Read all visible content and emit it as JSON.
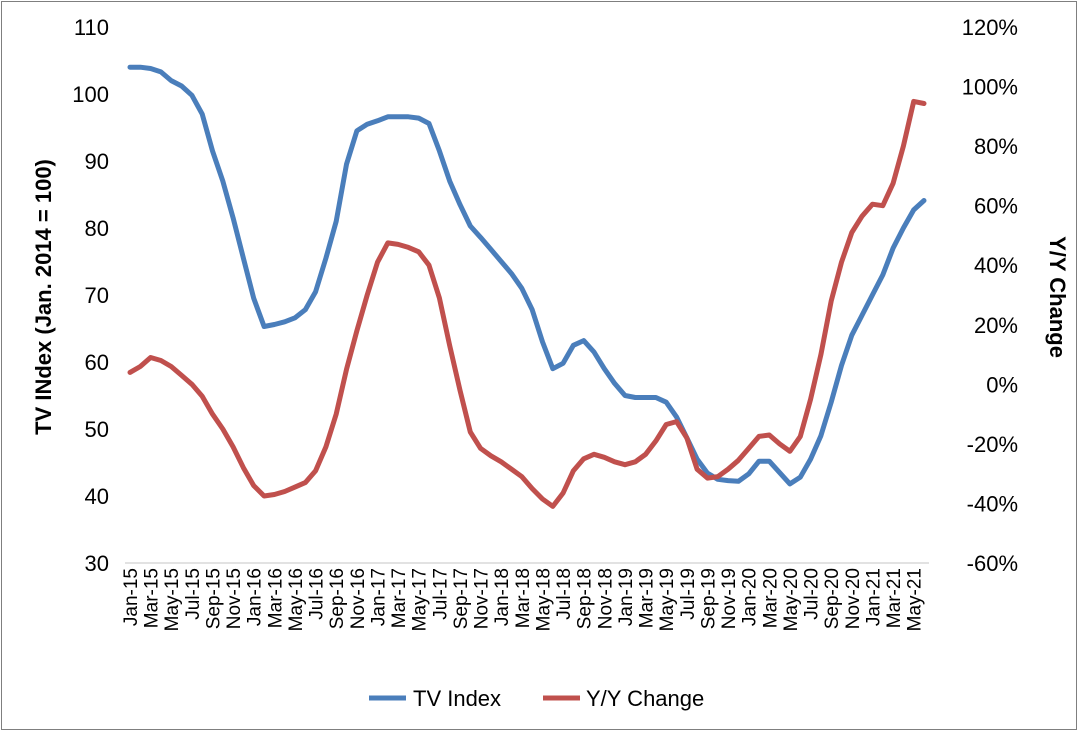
{
  "chart_data": {
    "type": "line",
    "xlabel": "",
    "ylabel": "TV INdex (Jan. 2014 = 100)",
    "y2label": "Y/Y Change",
    "ylim": [
      30,
      110
    ],
    "y_ticks": [
      "110",
      "100",
      "90",
      "80",
      "70",
      "60",
      "50",
      "40",
      "30"
    ],
    "y2lim": [
      -60,
      120
    ],
    "y2_ticks": [
      "120%",
      "100%",
      "80%",
      "60%",
      "40%",
      "20%",
      "0%",
      "-20%",
      "-40%",
      "-60%"
    ],
    "grid": false,
    "legend_position": "bottom",
    "x": [
      "Jan-15",
      "Feb-15",
      "Mar-15",
      "Apr-15",
      "May-15",
      "Jun-15",
      "Jul-15",
      "Aug-15",
      "Sep-15",
      "Oct-15",
      "Nov-15",
      "Dec-15",
      "Jan-16",
      "Feb-16",
      "Mar-16",
      "Apr-16",
      "May-16",
      "Jun-16",
      "Jul-16",
      "Aug-16",
      "Sep-16",
      "Oct-16",
      "Nov-16",
      "Dec-16",
      "Jan-17",
      "Feb-17",
      "Mar-17",
      "Apr-17",
      "May-17",
      "Jun-17",
      "Jul-17",
      "Aug-17",
      "Sep-17",
      "Oct-17",
      "Nov-17",
      "Dec-17",
      "Jan-18",
      "Feb-18",
      "Mar-18",
      "Apr-18",
      "May-18",
      "Jun-18",
      "Jul-18",
      "Aug-18",
      "Sep-18",
      "Oct-18",
      "Nov-18",
      "Dec-18",
      "Jan-19",
      "Feb-19",
      "Mar-19",
      "Apr-19",
      "May-19",
      "Jun-19",
      "Jul-19",
      "Aug-19",
      "Sep-19",
      "Oct-19",
      "Nov-19",
      "Dec-19",
      "Jan-20",
      "Feb-20",
      "Mar-20",
      "Apr-20",
      "May-20",
      "Jun-20",
      "Jul-20",
      "Aug-20",
      "Sep-20",
      "Oct-20",
      "Nov-20",
      "Dec-20",
      "Jan-21",
      "Feb-21",
      "Mar-21",
      "Apr-21",
      "May-21",
      "Jun-21"
    ],
    "x_tick_labels": [
      "Jan-15",
      "Mar-15",
      "May-15",
      "Jul-15",
      "Sep-15",
      "Nov-15",
      "Jan-16",
      "Mar-16",
      "May-16",
      "Jul-16",
      "Sep-16",
      "Nov-16",
      "Jan-17",
      "Mar-17",
      "May-17",
      "Jul-17",
      "Sep-17",
      "Nov-17",
      "Jan-18",
      "Mar-18",
      "May-18",
      "Jul-18",
      "Sep-18",
      "Nov-18",
      "Jan-19",
      "Mar-19",
      "May-19",
      "Jul-19",
      "Sep-19",
      "Nov-19",
      "Jan-20",
      "Mar-20",
      "May-20",
      "Jul-20",
      "Sep-20",
      "Nov-20",
      "Jan-21",
      "Mar-21",
      "May-21"
    ],
    "series": [
      {
        "name": "TV Index",
        "axis": "left",
        "color": "#4a7ebb",
        "values": [
          104.0,
          104.0,
          103.8,
          103.3,
          102.0,
          101.2,
          99.8,
          97.0,
          91.5,
          87.0,
          81.5,
          75.5,
          69.5,
          65.3,
          65.6,
          66.0,
          66.6,
          67.8,
          70.5,
          75.5,
          81.0,
          89.5,
          94.5,
          95.5,
          96.0,
          96.6,
          96.6,
          96.6,
          96.4,
          95.6,
          91.5,
          87.0,
          83.5,
          80.3,
          78.6,
          76.8,
          75.0,
          73.2,
          71.0,
          67.8,
          63.0,
          59.0,
          59.8,
          62.5,
          63.2,
          61.5,
          59.0,
          56.8,
          55.0,
          54.7,
          54.7,
          54.7,
          54.0,
          51.8,
          48.7,
          45.5,
          43.4,
          42.5,
          42.3,
          42.2,
          43.3,
          45.2,
          45.2,
          43.5,
          41.8,
          42.8,
          45.5,
          49.0,
          54.0,
          59.5,
          64.0,
          67.0,
          70.0,
          73.0,
          77.0,
          80.0,
          82.7,
          84.1
        ]
      },
      {
        "name": "Y/Y Change",
        "axis": "right",
        "color": "#c0504d",
        "values": [
          4,
          6,
          9,
          8,
          6,
          3,
          0,
          -4,
          -10,
          -15,
          -21,
          -28,
          -34,
          -37.5,
          -37,
          -36,
          -34.5,
          -33,
          -29,
          -21,
          -10,
          5,
          18,
          30,
          41,
          47.5,
          47,
          46,
          44.5,
          40,
          29,
          13,
          -2,
          -16,
          -21.5,
          -24,
          -26,
          -28.5,
          -31,
          -35,
          -38.5,
          -41,
          -36.5,
          -29,
          -25,
          -23.5,
          -24.5,
          -26,
          -27,
          -26,
          -23.5,
          -19,
          -13.5,
          -12.5,
          -18,
          -28.5,
          -31.5,
          -31,
          -28.5,
          -25.5,
          -21.5,
          -17.5,
          -17,
          -20,
          -22.5,
          -17.5,
          -5,
          10,
          28,
          41,
          51,
          56.5,
          60.5,
          60,
          67.5,
          80,
          95,
          94.3
        ]
      }
    ]
  }
}
